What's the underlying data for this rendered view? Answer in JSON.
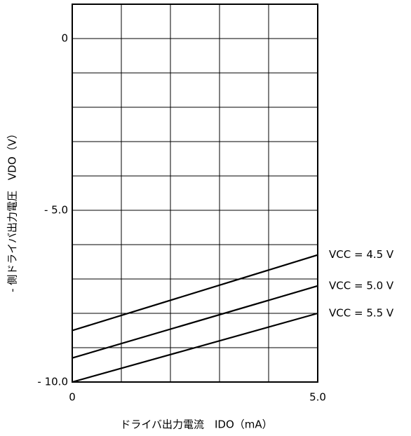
{
  "chart_data": {
    "type": "line",
    "xlabel": "ドライバ出力電流　IDO（mA）",
    "ylabel": "- 側ドライバ出力電圧　VDO（V）",
    "x": [
      0,
      5
    ],
    "series": [
      {
        "name": "VCC = 4.5 V",
        "color": "#000000",
        "values": [
          -8.5,
          -6.3
        ]
      },
      {
        "name": "VCC = 5.0 V",
        "color": "#000000",
        "values": [
          -9.3,
          -7.2
        ]
      },
      {
        "name": "VCC = 5.5 V",
        "color": "#000000",
        "values": [
          -10,
          -8.0
        ]
      }
    ],
    "xlim": [
      0,
      5
    ],
    "ylim": [
      -10,
      1
    ],
    "xticks": [
      0,
      {
        "value": 5,
        "label": "5.0"
      }
    ],
    "yticks": [
      0,
      {
        "value": -5,
        "label": "- 5.0"
      },
      {
        "value": -10,
        "label": "- 10.0"
      }
    ],
    "xgrid": [
      0,
      1,
      2,
      3,
      4,
      5
    ],
    "ygrid": [
      -10,
      -9,
      -8,
      -7,
      -6,
      -5,
      -4,
      -3,
      -2,
      -1,
      0,
      1
    ],
    "grid": true
  }
}
